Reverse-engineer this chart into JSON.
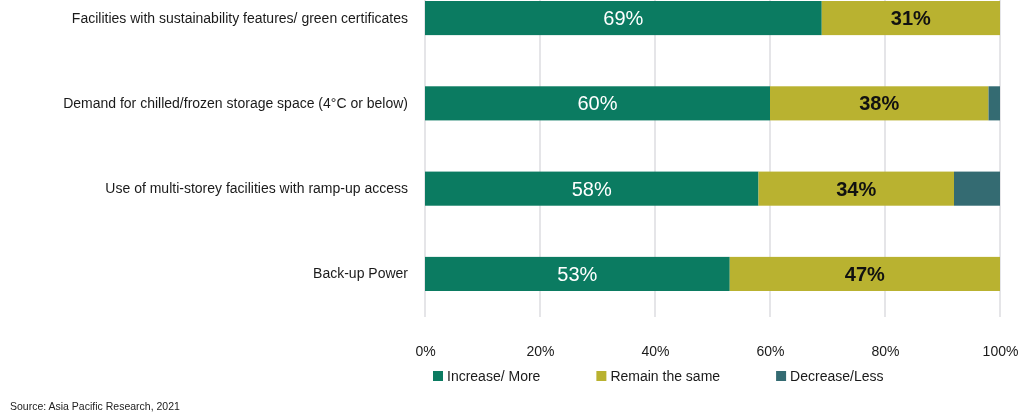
{
  "chart_data": {
    "type": "bar",
    "orientation": "horizontal",
    "stacked": true,
    "categories": [
      "Facilities with sustainability features/ green certificates",
      "Demand for chilled/frozen storage space (4°C or below)",
      "Use of multi-storey facilities with ramp-up access",
      "Back-up Power"
    ],
    "series": [
      {
        "name": "Increase/ More",
        "color": "#0b7b61",
        "values": [
          69,
          60,
          58,
          53
        ],
        "value_labels": [
          "69%",
          "60%",
          "58%",
          "53%"
        ]
      },
      {
        "name": "Remain the same",
        "color": "#b9b230",
        "values": [
          31,
          38,
          34,
          47
        ],
        "value_labels": [
          "31%",
          "38%",
          "34%",
          "47%"
        ]
      },
      {
        "name": "Decrease/Less",
        "color": "#346b72",
        "values": [
          0,
          2,
          8,
          0
        ]
      }
    ],
    "xlim": [
      0,
      100
    ],
    "xticks": [
      {
        "value": 0,
        "label": "0%"
      },
      {
        "value": 20,
        "label": "20%"
      },
      {
        "value": 40,
        "label": "40%"
      },
      {
        "value": 60,
        "label": "60%"
      },
      {
        "value": 80,
        "label": "80%"
      },
      {
        "value": 100,
        "label": "100%"
      }
    ],
    "grid": "x",
    "legend": "bottom",
    "annotations": [
      "Source: Asia Pacific Research, 2021"
    ]
  }
}
